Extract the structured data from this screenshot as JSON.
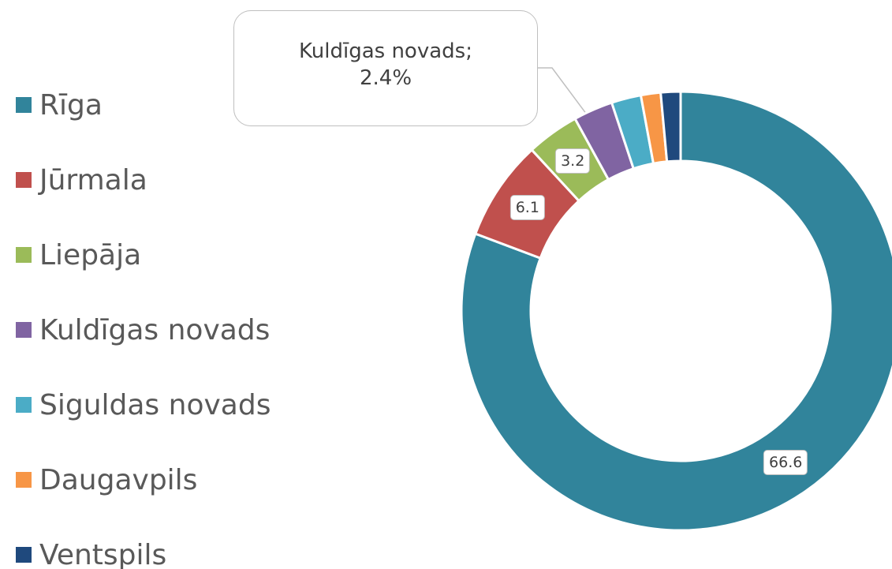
{
  "chart_data": {
    "type": "donut",
    "categories": [
      "Rīga",
      "Jūrmala",
      "Liepāja",
      "Kuldīgas novads",
      "Siguldas novads",
      "Daugavpils",
      "Ventspils"
    ],
    "values": [
      66.6,
      6.1,
      3.2,
      2.4,
      1.8,
      1.2,
      1.2
    ],
    "value_labels": [
      "66.6",
      "6.1",
      "3.2",
      "Kuldīgas novads; 2.4%",
      null,
      null,
      null
    ],
    "colors": [
      "#31849b",
      "#c0504d",
      "#9bbb59",
      "#8064a2",
      "#4bacc6",
      "#f79646",
      "#1f497d"
    ],
    "legend": "left"
  }
}
